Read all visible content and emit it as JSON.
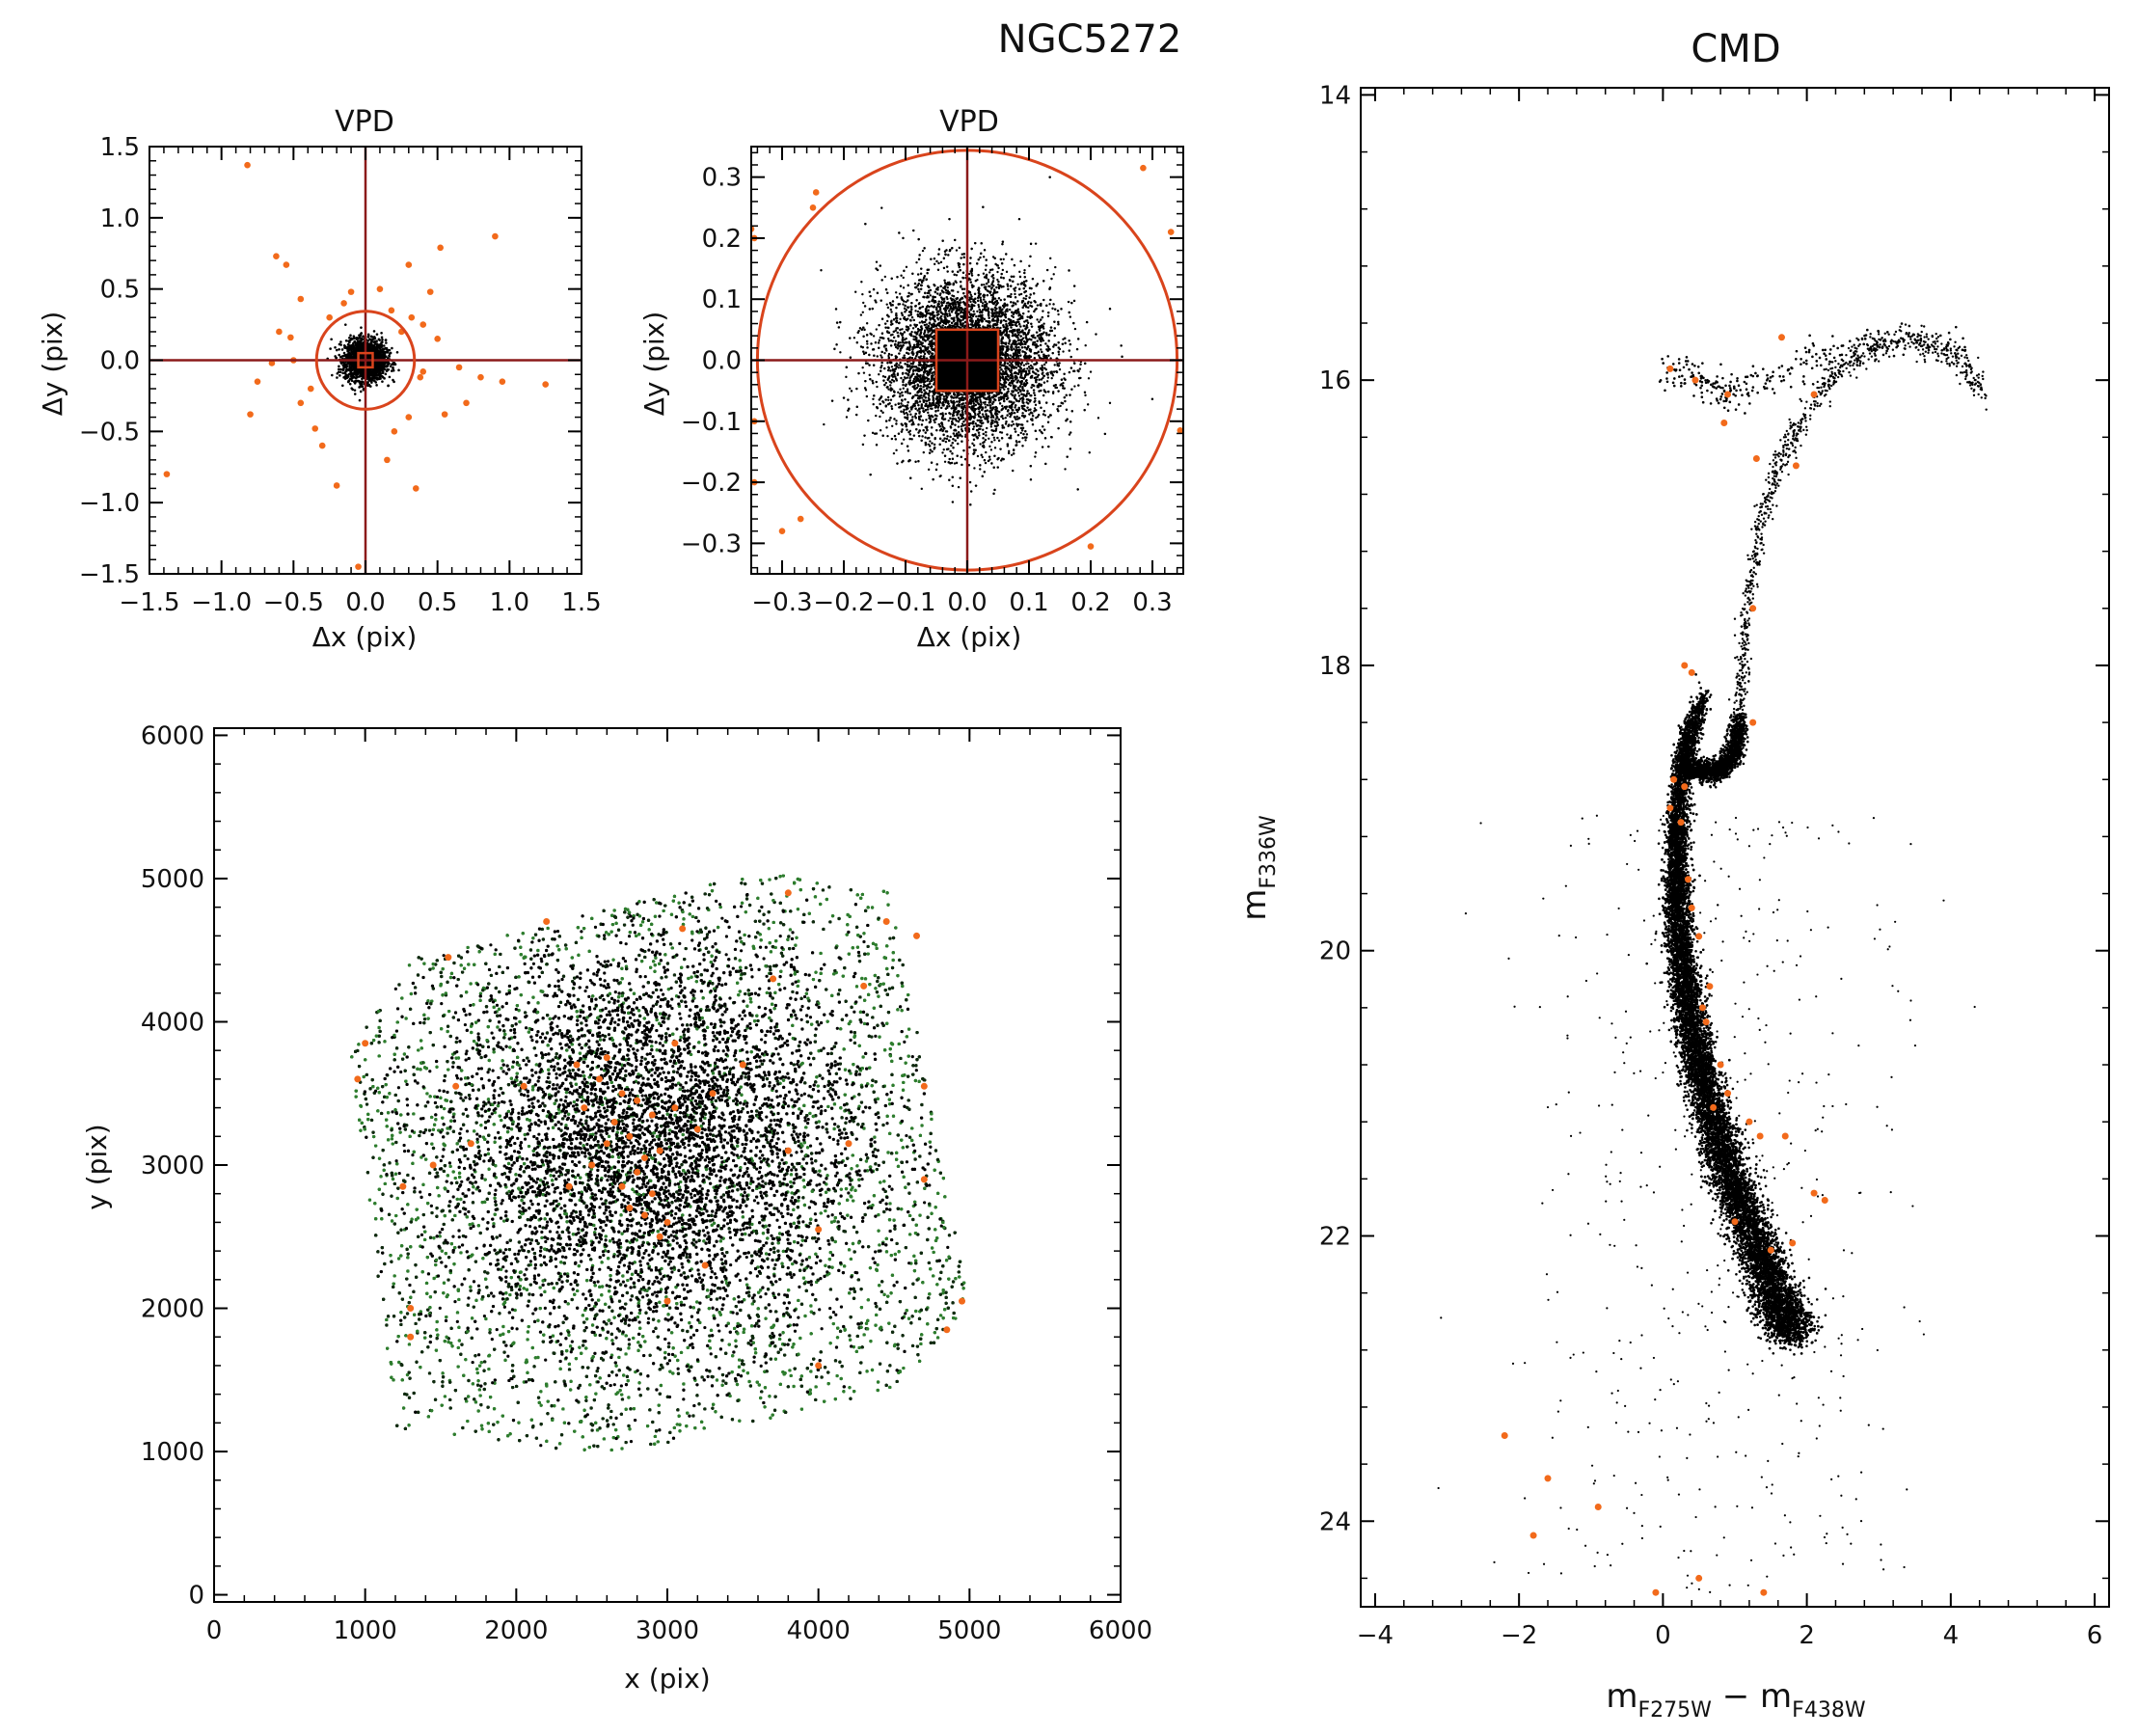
{
  "figure": {
    "title": "NGC5272",
    "colors": {
      "stars": "#000000",
      "members": "#2e7d2e",
      "highlight": "#f26a1b",
      "axes": "#8b1a1a",
      "circle": "#d9441c"
    }
  },
  "chart_data": [
    {
      "id": "vpd_wide",
      "type": "scatter",
      "title": "VPD",
      "xlabel": "Δx (pix)",
      "ylabel": "Δy (pix)",
      "xlim": [
        -1.5,
        1.5
      ],
      "ylim": [
        -1.5,
        1.5
      ],
      "xticks": [
        -1.5,
        -1.0,
        -0.5,
        0.0,
        0.5,
        1.0,
        1.5
      ],
      "yticks": [
        -1.5,
        -1.0,
        -0.5,
        0.0,
        0.5,
        1.0,
        1.5
      ],
      "xticklabels": [
        "−1.5",
        "−1.0",
        "−0.5",
        "0.0",
        "0.5",
        "1.0",
        "1.5"
      ],
      "yticklabels": [
        "−1.5",
        "−1.0",
        "−0.5",
        "0.0",
        "0.5",
        "1.0",
        "1.5"
      ],
      "selection_circle_radius": 0.34,
      "selection_box_halfwidth": 0.05,
      "core": {
        "center": [
          0.0,
          0.0
        ],
        "sigma": 0.07,
        "n": 2200
      },
      "highlight_points": [
        [
          -0.82,
          1.37
        ],
        [
          -1.38,
          -0.8
        ],
        [
          0.9,
          0.87
        ],
        [
          0.52,
          0.79
        ],
        [
          -0.62,
          0.73
        ],
        [
          -0.55,
          0.67
        ],
        [
          -0.75,
          -0.15
        ],
        [
          -0.8,
          -0.38
        ],
        [
          -0.6,
          0.2
        ],
        [
          -0.45,
          0.43
        ],
        [
          -0.05,
          -1.45
        ],
        [
          -0.2,
          -0.88
        ],
        [
          0.35,
          -0.9
        ],
        [
          0.3,
          0.67
        ],
        [
          0.45,
          0.48
        ],
        [
          0.1,
          0.5
        ],
        [
          -0.1,
          0.48
        ],
        [
          0.95,
          -0.15
        ],
        [
          1.25,
          -0.17
        ],
        [
          0.8,
          -0.12
        ],
        [
          0.55,
          -0.38
        ],
        [
          -0.65,
          -0.02
        ],
        [
          -0.52,
          0.16
        ],
        [
          -0.35,
          -0.48
        ],
        [
          0.2,
          -0.5
        ],
        [
          0.32,
          0.3
        ],
        [
          0.38,
          -0.12
        ],
        [
          0.4,
          -0.08
        ],
        [
          -0.38,
          -0.2
        ],
        [
          0.18,
          0.35
        ],
        [
          -0.15,
          0.4
        ],
        [
          0.4,
          0.25
        ],
        [
          0.5,
          0.15
        ],
        [
          -0.45,
          -0.3
        ],
        [
          0.3,
          -0.4
        ],
        [
          0.15,
          -0.7
        ],
        [
          -0.3,
          -0.6
        ],
        [
          -0.5,
          0.0
        ],
        [
          0.65,
          -0.05
        ],
        [
          0.7,
          -0.3
        ],
        [
          -0.25,
          0.3
        ],
        [
          0.25,
          0.2
        ]
      ]
    },
    {
      "id": "vpd_zoom",
      "type": "scatter",
      "title": "VPD",
      "xlabel": "Δx (pix)",
      "ylabel": "Δy (pix)",
      "xlim": [
        -0.35,
        0.35
      ],
      "ylim": [
        -0.35,
        0.35
      ],
      "xticks": [
        -0.3,
        -0.2,
        -0.1,
        0.0,
        0.1,
        0.2,
        0.3
      ],
      "yticks": [
        -0.3,
        -0.2,
        -0.1,
        0.0,
        0.1,
        0.2,
        0.3
      ],
      "xticklabels": [
        "−0.3",
        "−0.2",
        "−0.1",
        "0.0",
        "0.1",
        "0.2",
        "0.3"
      ],
      "yticklabels": [
        "−0.3",
        "−0.2",
        "−0.1",
        "0.0",
        "0.1",
        "0.2",
        "0.3"
      ],
      "selection_circle_radius": 0.34,
      "selection_box_halfwidth": 0.05,
      "core": {
        "center": [
          0.0,
          0.0
        ],
        "sigma": 0.07,
        "n": 9000
      },
      "highlight_points": [
        [
          -0.35,
          0.215
        ],
        [
          -0.345,
          0.2
        ],
        [
          -0.245,
          0.275
        ],
        [
          -0.25,
          0.25
        ],
        [
          0.285,
          0.315
        ],
        [
          0.33,
          0.21
        ],
        [
          0.2,
          -0.305
        ],
        [
          -0.27,
          -0.26
        ],
        [
          -0.3,
          -0.28
        ],
        [
          -0.345,
          -0.2
        ],
        [
          0.345,
          -0.115
        ],
        [
          -0.345,
          -0.1
        ]
      ]
    },
    {
      "id": "xy_map",
      "type": "scatter",
      "title": "",
      "xlabel": "x (pix)",
      "ylabel": "y (pix)",
      "xlim": [
        0,
        6000
      ],
      "ylim": [
        -50,
        6050
      ],
      "xticks": [
        0,
        1000,
        2000,
        3000,
        4000,
        5000,
        6000
      ],
      "yticks": [
        0,
        1000,
        2000,
        3000,
        4000,
        5000,
        6000
      ],
      "xticklabels": [
        "0",
        "1000",
        "2000",
        "3000",
        "4000",
        "5000",
        "6000"
      ],
      "yticklabels": [
        "0",
        "1000",
        "2000",
        "3000",
        "4000",
        "5000",
        "6000"
      ],
      "field_footprint": [
        [
          1320,
          4440
        ],
        [
          3600,
          5050
        ],
        [
          4480,
          4910
        ],
        [
          5000,
          2000
        ],
        [
          4500,
          1440
        ],
        [
          2650,
          970
        ],
        [
          1210,
          1160
        ],
        [
          900,
          3800
        ]
      ],
      "field_center": [
        2900,
        3150
      ],
      "highlight_points": [
        [
          2700,
          3500
        ],
        [
          2650,
          3300
        ],
        [
          2800,
          3450
        ],
        [
          2900,
          3350
        ],
        [
          2750,
          3200
        ],
        [
          2600,
          3150
        ],
        [
          2850,
          3050
        ],
        [
          2800,
          2950
        ],
        [
          2700,
          2850
        ],
        [
          2900,
          2800
        ],
        [
          2750,
          2700
        ],
        [
          2850,
          2650
        ],
        [
          2950,
          3100
        ],
        [
          3050,
          3400
        ],
        [
          3200,
          3250
        ],
        [
          2550,
          3600
        ],
        [
          2600,
          3750
        ],
        [
          2450,
          3400
        ],
        [
          2500,
          3000
        ],
        [
          2350,
          2850
        ],
        [
          3000,
          2600
        ],
        [
          2950,
          2500
        ],
        [
          3250,
          2300
        ],
        [
          2050,
          3550
        ],
        [
          1600,
          3550
        ],
        [
          1700,
          3150
        ],
        [
          1000,
          3850
        ],
        [
          950,
          3600
        ],
        [
          1550,
          4450
        ],
        [
          3050,
          3850
        ],
        [
          3300,
          3500
        ],
        [
          3800,
          4900
        ],
        [
          4450,
          4700
        ],
        [
          4650,
          4600
        ],
        [
          4300,
          4250
        ],
        [
          4700,
          3550
        ],
        [
          4200,
          3150
        ],
        [
          4700,
          2900
        ],
        [
          3800,
          3100
        ],
        [
          4000,
          2550
        ],
        [
          4950,
          2050
        ],
        [
          4850,
          1850
        ],
        [
          4000,
          1600
        ],
        [
          3000,
          2050
        ],
        [
          1300,
          1800
        ],
        [
          1300,
          2000
        ],
        [
          1250,
          2850
        ],
        [
          2200,
          4700
        ],
        [
          3100,
          4650
        ],
        [
          3700,
          4300
        ],
        [
          2400,
          3700
        ],
        [
          3500,
          3700
        ],
        [
          1450,
          3000
        ]
      ]
    },
    {
      "id": "cmd",
      "type": "scatter",
      "title": "CMD",
      "xlabel": "m",
      "xlabel_sub": [
        "F275W",
        "F438W"
      ],
      "ylabel": "m",
      "ylabel_sub": "F336W",
      "xlim": [
        -4.2,
        6.2
      ],
      "ylim": [
        24.6,
        13.95
      ],
      "xticks": [
        -4,
        -2,
        0,
        2,
        4,
        6
      ],
      "yticks": [
        14,
        16,
        18,
        20,
        22,
        24
      ],
      "xticklabels": [
        "−4",
        "−2",
        "0",
        "2",
        "4",
        "6"
      ],
      "yticklabels": [
        "14",
        "16",
        "18",
        "20",
        "22",
        "24"
      ],
      "main_sequence_ridge": [
        [
          0.6,
          18.2
        ],
        [
          0.35,
          18.5
        ],
        [
          0.25,
          18.8
        ],
        [
          0.2,
          19.2
        ],
        [
          0.2,
          19.6
        ],
        [
          0.25,
          20.0
        ],
        [
          0.35,
          20.4
        ],
        [
          0.5,
          20.8
        ],
        [
          0.7,
          21.2
        ],
        [
          0.95,
          21.6
        ],
        [
          1.25,
          22.0
        ],
        [
          1.55,
          22.4
        ],
        [
          1.8,
          22.7
        ]
      ],
      "subgiant_branch": [
        [
          0.3,
          18.7
        ],
        [
          0.6,
          18.75
        ],
        [
          0.85,
          18.72
        ],
        [
          1.0,
          18.6
        ],
        [
          1.05,
          18.4
        ]
      ],
      "red_giant_branch": [
        [
          1.05,
          18.4
        ],
        [
          1.1,
          18.0
        ],
        [
          1.2,
          17.5
        ],
        [
          1.35,
          17.0
        ],
        [
          1.6,
          16.6
        ],
        [
          1.9,
          16.3
        ],
        [
          2.3,
          16.0
        ],
        [
          2.8,
          15.8
        ],
        [
          3.4,
          15.7
        ],
        [
          4.0,
          15.8
        ],
        [
          4.5,
          16.1
        ]
      ],
      "horizontal_branch": [
        [
          -0.1,
          15.9
        ],
        [
          0.2,
          15.95
        ],
        [
          0.5,
          16.0
        ],
        [
          0.7,
          16.05
        ],
        [
          0.9,
          16.1
        ],
        [
          1.2,
          16.05
        ],
        [
          1.6,
          15.95
        ],
        [
          2.0,
          15.85
        ],
        [
          2.5,
          15.8
        ],
        [
          3.0,
          15.75
        ],
        [
          3.5,
          15.72
        ],
        [
          4.2,
          15.8
        ]
      ],
      "highlight_points": [
        [
          0.1,
          15.92
        ],
        [
          0.45,
          16.0
        ],
        [
          0.9,
          16.1
        ],
        [
          0.85,
          16.3
        ],
        [
          1.65,
          15.7
        ],
        [
          2.1,
          16.1
        ],
        [
          1.3,
          16.55
        ],
        [
          1.85,
          16.6
        ],
        [
          1.25,
          17.6
        ],
        [
          0.3,
          18.0
        ],
        [
          0.4,
          18.05
        ],
        [
          1.25,
          18.4
        ],
        [
          0.15,
          18.8
        ],
        [
          0.3,
          18.85
        ],
        [
          0.25,
          19.1
        ],
        [
          0.35,
          19.5
        ],
        [
          0.4,
          19.7
        ],
        [
          0.5,
          19.9
        ],
        [
          0.55,
          20.4
        ],
        [
          0.6,
          20.5
        ],
        [
          0.8,
          20.8
        ],
        [
          0.9,
          21.0
        ],
        [
          1.2,
          21.2
        ],
        [
          1.35,
          21.3
        ],
        [
          1.7,
          21.3
        ],
        [
          2.1,
          21.7
        ],
        [
          2.25,
          21.75
        ],
        [
          1.5,
          22.1
        ],
        [
          1.8,
          22.05
        ],
        [
          1.0,
          21.9
        ],
        [
          -2.2,
          23.4
        ],
        [
          -1.6,
          23.7
        ],
        [
          -1.8,
          24.1
        ],
        [
          -0.9,
          23.9
        ],
        [
          0.5,
          24.4
        ],
        [
          -0.1,
          24.5
        ],
        [
          1.4,
          24.5
        ],
        [
          0.1,
          19.0
        ],
        [
          0.65,
          20.25
        ],
        [
          0.7,
          21.1
        ]
      ]
    }
  ]
}
